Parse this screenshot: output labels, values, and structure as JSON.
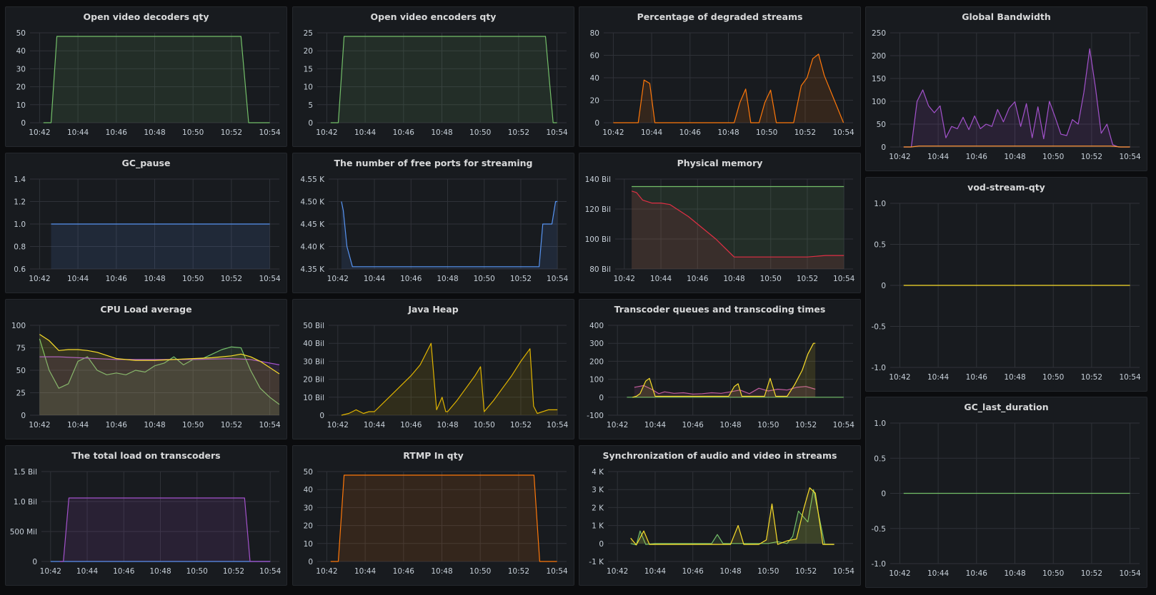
{
  "colors": {
    "background": "#0b0c0e",
    "panel": "#181b1f",
    "border": "#25282d",
    "grid": "#2f3238",
    "text": "#c7d0d9",
    "green": "#73bf69",
    "orange": "#ff780a",
    "purple": "#a352cc",
    "blue": "#5794f2",
    "yellow": "#fade2a",
    "red": "#e02f44",
    "pink": "#c15c9c",
    "light_green": "#96d98d"
  },
  "time_ticks": [
    "10:42",
    "10:44",
    "10:46",
    "10:48",
    "10:50",
    "10:52",
    "10:54"
  ],
  "chart_data": [
    {
      "id": "decoders",
      "title": "Open video decoders qty",
      "type": "area",
      "ylim": [
        0,
        50
      ],
      "y_ticks": [
        "0",
        "10",
        "20",
        "30",
        "40",
        "50"
      ],
      "series": [
        {
          "color": "#73bf69",
          "x": [
            "10:42:12",
            "10:42:36",
            "10:42:54",
            "10:52:30",
            "10:52:54",
            "10:54:00"
          ],
          "values": [
            0,
            0,
            48,
            48,
            0,
            0
          ]
        }
      ]
    },
    {
      "id": "encoders",
      "title": "Open video encoders qty",
      "type": "area",
      "ylim": [
        0,
        25
      ],
      "y_ticks": [
        "0",
        "5",
        "10",
        "15",
        "20",
        "25"
      ],
      "series": [
        {
          "color": "#73bf69",
          "x": [
            "10:42:12",
            "10:42:36",
            "10:42:54",
            "10:53:24",
            "10:53:48",
            "10:54:00"
          ],
          "values": [
            0,
            0,
            24,
            24,
            0,
            0
          ]
        }
      ]
    },
    {
      "id": "degraded",
      "title": "Percentage of degraded streams",
      "type": "area",
      "ylim": [
        0,
        80
      ],
      "y_ticks": [
        "0",
        "20",
        "40",
        "60",
        "80"
      ],
      "series": [
        {
          "color": "#ff780a",
          "x": [
            "10:42:00",
            "10:43:00",
            "10:43:18",
            "10:43:36",
            "10:43:54",
            "10:44:10",
            "10:48:00",
            "10:48:18",
            "10:48:36",
            "10:48:54",
            "10:49:10",
            "10:49:36",
            "10:49:54",
            "10:50:12",
            "10:50:30",
            "10:51:00",
            "10:51:24",
            "10:51:48",
            "10:52:06",
            "10:52:24",
            "10:52:42",
            "10:53:00",
            "10:54:00"
          ],
          "values": [
            0,
            0,
            0,
            38,
            35,
            0,
            0,
            0,
            18,
            30,
            0,
            0,
            18,
            29,
            0,
            0,
            0,
            33,
            40,
            57,
            61,
            42,
            0
          ]
        }
      ]
    },
    {
      "id": "global_bandwidth",
      "title": "Global Bandwidth",
      "type": "area",
      "ylim": [
        0,
        250
      ],
      "y_ticks": [
        "0",
        "50",
        "100",
        "150",
        "200",
        "250"
      ],
      "series": [
        {
          "color": "#a352cc",
          "x": [
            "10:42:12",
            "10:42:36",
            "10:42:54",
            "10:43:12",
            "10:43:30",
            "10:43:48",
            "10:44:06",
            "10:44:24",
            "10:44:42",
            "10:45:00",
            "10:45:18",
            "10:45:36",
            "10:45:54",
            "10:46:12",
            "10:46:30",
            "10:46:48",
            "10:47:06",
            "10:47:24",
            "10:47:42",
            "10:48:00",
            "10:48:18",
            "10:48:36",
            "10:48:54",
            "10:49:12",
            "10:49:30",
            "10:49:48",
            "10:50:06",
            "10:50:24",
            "10:50:42",
            "10:51:00",
            "10:51:18",
            "10:51:36",
            "10:51:54",
            "10:52:12",
            "10:52:30",
            "10:52:48",
            "10:53:06",
            "10:53:24",
            "10:54:00"
          ],
          "values": [
            0,
            0,
            100,
            125,
            90,
            75,
            90,
            20,
            45,
            40,
            65,
            38,
            68,
            40,
            50,
            45,
            82,
            55,
            85,
            99,
            45,
            95,
            20,
            88,
            18,
            100,
            65,
            28,
            25,
            60,
            50,
            120,
            215,
            130,
            30,
            50,
            5,
            0,
            0
          ]
        },
        {
          "color": "#ff9830",
          "x": [
            "10:42:12",
            "10:42:36",
            "10:43:00",
            "10:53:00",
            "10:53:30",
            "10:54:00"
          ],
          "values": [
            0,
            0,
            2,
            2,
            0,
            0
          ]
        }
      ]
    },
    {
      "id": "gc_pause",
      "title": "GC_pause",
      "type": "area",
      "ylim": [
        0.6,
        1.4
      ],
      "y_ticks": [
        "0.6",
        "0.8",
        "1.0",
        "1.2",
        "1.4"
      ],
      "series": [
        {
          "color": "#5794f2",
          "x": [
            "10:42:36",
            "10:54:00"
          ],
          "values": [
            1.0,
            1.0
          ]
        }
      ]
    },
    {
      "id": "free_ports",
      "title": "The number of free ports for streaming",
      "type": "area",
      "ylim": [
        4350,
        4550
      ],
      "y_ticks": [
        "4.35 K",
        "4.40 K",
        "4.45 K",
        "4.50 K",
        "4.55 K"
      ],
      "series": [
        {
          "color": "#5794f2",
          "x": [
            "10:42:12",
            "10:42:18",
            "10:42:30",
            "10:42:48",
            "10:53:00",
            "10:53:12",
            "10:53:42",
            "10:53:54",
            "10:54:00"
          ],
          "values": [
            4500,
            4480,
            4400,
            4355,
            4355,
            4450,
            4450,
            4500,
            4500
          ]
        }
      ]
    },
    {
      "id": "physical_memory",
      "title": "Physical memory",
      "type": "area",
      "ylim": [
        80,
        140
      ],
      "y_ticks": [
        "80 Bil",
        "100 Bil",
        "120 Bil",
        "140 Bil"
      ],
      "series": [
        {
          "color": "#73bf69",
          "x": [
            "10:42:24",
            "10:54:00"
          ],
          "values": [
            135,
            135
          ]
        },
        {
          "color": "#e02f44",
          "x": [
            "10:42:24",
            "10:42:40",
            "10:43:00",
            "10:43:30",
            "10:44:00",
            "10:44:30",
            "10:45:30",
            "10:46:30",
            "10:47:00",
            "10:48:00",
            "10:49:00",
            "10:50:00",
            "10:51:00",
            "10:52:00",
            "10:53:00",
            "10:54:00"
          ],
          "values": [
            132,
            131,
            126,
            124,
            124,
            123,
            115,
            105,
            100,
            88,
            88,
            88,
            88,
            88,
            89,
            89
          ]
        }
      ]
    },
    {
      "id": "cpu_load",
      "title": "CPU Load average",
      "type": "area",
      "ylim": [
        0,
        100
      ],
      "y_ticks": [
        "0",
        "25",
        "50",
        "75",
        "100"
      ],
      "series": [
        {
          "color": "#73bf69",
          "x": [
            "10:42:00",
            "10:42:30",
            "10:43:00",
            "10:43:30",
            "10:44:00",
            "10:44:30",
            "10:45:00",
            "10:45:30",
            "10:46:00",
            "10:46:30",
            "10:47:00",
            "10:47:30",
            "10:48:00",
            "10:48:30",
            "10:49:00",
            "10:49:30",
            "10:50:00",
            "10:50:30",
            "10:51:00",
            "10:51:30",
            "10:52:00",
            "10:52:30",
            "10:53:00",
            "10:53:30",
            "10:54:00",
            "10:54:30"
          ],
          "values": [
            85,
            50,
            30,
            35,
            60,
            65,
            50,
            45,
            47,
            45,
            50,
            48,
            55,
            58,
            65,
            56,
            62,
            63,
            68,
            73,
            76,
            75,
            50,
            30,
            20,
            12
          ]
        },
        {
          "color": "#a352cc",
          "x": [
            "10:42:00",
            "10:43:00",
            "10:44:00",
            "10:46:00",
            "10:48:00",
            "10:50:00",
            "10:52:00",
            "10:53:00",
            "10:54:30"
          ],
          "values": [
            65,
            65,
            64,
            62,
            62,
            62,
            63,
            62,
            56
          ]
        },
        {
          "color": "#fade2a",
          "x": [
            "10:42:00",
            "10:42:30",
            "10:43:00",
            "10:43:30",
            "10:44:00",
            "10:44:30",
            "10:45:00",
            "10:46:00",
            "10:47:00",
            "10:48:00",
            "10:49:00",
            "10:50:00",
            "10:51:00",
            "10:52:00",
            "10:52:30",
            "10:53:00",
            "10:53:30",
            "10:54:30"
          ],
          "values": [
            90,
            83,
            72,
            73,
            73,
            72,
            70,
            63,
            61,
            61,
            62,
            63,
            64,
            66,
            68,
            65,
            60,
            46
          ]
        }
      ]
    },
    {
      "id": "java_heap",
      "title": "Java Heap",
      "type": "area",
      "ylim": [
        0,
        50
      ],
      "y_ticks": [
        "0",
        "10 Bil",
        "20 Bil",
        "30 Bil",
        "40 Bil",
        "50 Bil"
      ],
      "series": [
        {
          "color": "#e0b400",
          "x": [
            "10:42:12",
            "10:42:36",
            "10:42:48",
            "10:43:00",
            "10:43:24",
            "10:43:42",
            "10:44:00",
            "10:45:00",
            "10:46:00",
            "10:46:30",
            "10:47:06",
            "10:47:24",
            "10:47:42",
            "10:47:54",
            "10:48:00",
            "10:48:30",
            "10:49:00",
            "10:49:30",
            "10:49:48",
            "10:50:00",
            "10:50:30",
            "10:51:00",
            "10:51:30",
            "10:52:00",
            "10:52:30",
            "10:52:42",
            "10:52:54",
            "10:53:30",
            "10:54:00"
          ],
          "values": [
            0,
            1,
            2,
            3,
            1,
            2,
            2,
            12,
            22,
            28,
            40,
            3,
            10,
            2,
            2,
            8,
            15,
            22,
            27,
            2,
            8,
            15,
            22,
            30,
            37,
            5,
            1,
            3,
            3
          ]
        }
      ]
    },
    {
      "id": "transcoder_queues",
      "title": "Transcoder queues and transcoding times",
      "type": "area",
      "ylim": [
        -100,
        400
      ],
      "y_ticks": [
        "-100",
        "0",
        "100",
        "200",
        "300",
        "400"
      ],
      "series": [
        {
          "color": "#73bf69",
          "x": [
            "10:42:30",
            "10:54:00"
          ],
          "values": [
            0,
            0
          ]
        },
        {
          "color": "#c15c9c",
          "x": [
            "10:42:54",
            "10:43:24",
            "10:43:48",
            "10:44:12",
            "10:44:30",
            "10:45:00",
            "10:45:30",
            "10:46:00",
            "10:46:30",
            "10:47:00",
            "10:47:30",
            "10:48:00",
            "10:48:30",
            "10:49:00",
            "10:49:30",
            "10:50:00",
            "10:50:30",
            "10:51:00",
            "10:51:30",
            "10:52:00",
            "10:52:30"
          ],
          "values": [
            55,
            65,
            45,
            20,
            30,
            22,
            25,
            18,
            20,
            25,
            22,
            30,
            40,
            20,
            50,
            35,
            45,
            40,
            55,
            60,
            45
          ]
        },
        {
          "color": "#fade2a",
          "x": [
            "10:42:48",
            "10:43:00",
            "10:43:12",
            "10:43:30",
            "10:43:42",
            "10:44:00",
            "10:47:54",
            "10:48:12",
            "10:48:24",
            "10:48:36",
            "10:49:48",
            "10:50:06",
            "10:50:24",
            "10:51:00",
            "10:51:24",
            "10:51:48",
            "10:52:06",
            "10:52:24",
            "10:52:30"
          ],
          "values": [
            0,
            5,
            20,
            90,
            105,
            5,
            5,
            60,
            75,
            5,
            5,
            105,
            5,
            5,
            70,
            150,
            240,
            300,
            300
          ]
        }
      ]
    },
    {
      "id": "vod_stream",
      "title": "vod-stream-qty",
      "type": "line",
      "ylim": [
        -1.0,
        1.0
      ],
      "y_ticks": [
        "-1.0",
        "-0.5",
        "0",
        "0.5",
        "1.0"
      ],
      "series": [
        {
          "color": "#fade2a",
          "x": [
            "10:42:12",
            "10:54:00"
          ],
          "values": [
            0,
            0
          ]
        }
      ]
    },
    {
      "id": "total_load",
      "title": "The total load on transcoders",
      "type": "area",
      "ylim": [
        0,
        1500000000
      ],
      "y_ticks": [
        "0",
        "500 Mil",
        "1.0 Bil",
        "1.5 Bil"
      ],
      "series": [
        {
          "color": "#5794f2",
          "x": [
            "10:42:00",
            "10:54:00"
          ],
          "values": [
            0,
            0
          ]
        },
        {
          "color": "#a352cc",
          "x": [
            "10:42:30",
            "10:42:42",
            "10:43:00",
            "10:52:36",
            "10:52:54",
            "10:54:00"
          ],
          "values": [
            0,
            0,
            1060000000,
            1060000000,
            0,
            0
          ]
        }
      ]
    },
    {
      "id": "rtmp_in",
      "title": "RTMP In qty",
      "type": "area",
      "ylim": [
        0,
        50
      ],
      "y_ticks": [
        "0",
        "10",
        "20",
        "30",
        "40",
        "50"
      ],
      "series": [
        {
          "color": "#ff780a",
          "x": [
            "10:42:12",
            "10:42:36",
            "10:42:54",
            "10:52:48",
            "10:53:06",
            "10:54:00"
          ],
          "values": [
            0,
            0,
            48,
            48,
            0,
            0
          ]
        }
      ]
    },
    {
      "id": "av_sync",
      "title": "Synchronization of audio and video in streams",
      "type": "area",
      "ylim": [
        -1000,
        4000
      ],
      "y_ticks": [
        "-1 K",
        "0",
        "1 K",
        "2 K",
        "3 K",
        "4 K"
      ],
      "series": [
        {
          "color": "#73bf69",
          "x": [
            "10:42:42",
            "10:43:00",
            "10:43:12",
            "10:43:30",
            "10:44:00",
            "10:46:00",
            "10:47:00",
            "10:47:18",
            "10:47:36",
            "10:50:00",
            "10:50:30",
            "10:51:00",
            "10:51:18",
            "10:51:36",
            "10:52:06",
            "10:52:24",
            "10:53:00",
            "10:53:30"
          ],
          "values": [
            0,
            -80,
            700,
            -50,
            0,
            0,
            0,
            500,
            0,
            0,
            100,
            0,
            400,
            1800,
            1200,
            3000,
            -50,
            -50
          ]
        },
        {
          "color": "#fade2a",
          "x": [
            "10:42:42",
            "10:43:00",
            "10:43:24",
            "10:43:42",
            "10:44:00",
            "10:48:00",
            "10:48:24",
            "10:48:42",
            "10:49:30",
            "10:49:54",
            "10:50:12",
            "10:50:30",
            "10:51:00",
            "10:51:30",
            "10:51:54",
            "10:52:12",
            "10:52:30",
            "10:52:54",
            "10:53:30"
          ],
          "values": [
            300,
            -80,
            700,
            -50,
            -50,
            -50,
            1000,
            -50,
            -50,
            200,
            2200,
            -50,
            150,
            250,
            2000,
            3100,
            2800,
            -50,
            -50
          ]
        }
      ]
    },
    {
      "id": "gc_last_duration",
      "title": "GC_last_duration",
      "type": "line",
      "ylim": [
        -1.0,
        1.0
      ],
      "y_ticks": [
        "-1.0",
        "-0.5",
        "0",
        "0.5",
        "1.0"
      ],
      "series": [
        {
          "color": "#73bf69",
          "x": [
            "10:42:12",
            "10:54:00"
          ],
          "values": [
            0,
            0
          ]
        }
      ]
    }
  ]
}
